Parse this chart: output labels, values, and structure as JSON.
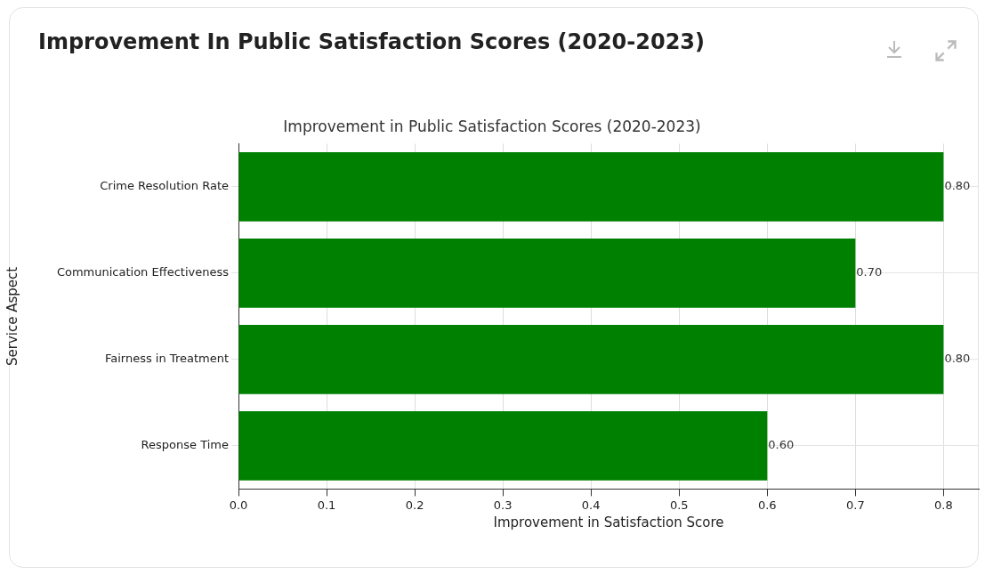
{
  "chart_data": {
    "type": "bar",
    "title": "Improvement In Public Satisfaction Scores (2020-2023)",
    "subtitle": "Improvement in Public Satisfaction Scores (2020-2023)",
    "xlabel": "Improvement in Satisfaction Score",
    "ylabel": "Service Aspect",
    "orientation": "horizontal",
    "categories": [
      "Crime Resolution Rate",
      "Communication Effectiveness",
      "Fairness in Treatment",
      "Response Time"
    ],
    "values": [
      0.8,
      0.7,
      0.8,
      0.6
    ],
    "value_labels": [
      "0.80",
      "0.70",
      "0.80",
      "0.60"
    ],
    "color": "#008000",
    "xlim": [
      0,
      0.84
    ],
    "xticks": [
      {
        "value": 0,
        "label": "0.0"
      },
      0.1,
      0.2,
      0.3,
      0.4,
      0.5,
      0.6,
      0.7,
      0.8
    ],
    "grid": true,
    "legend": false
  }
}
